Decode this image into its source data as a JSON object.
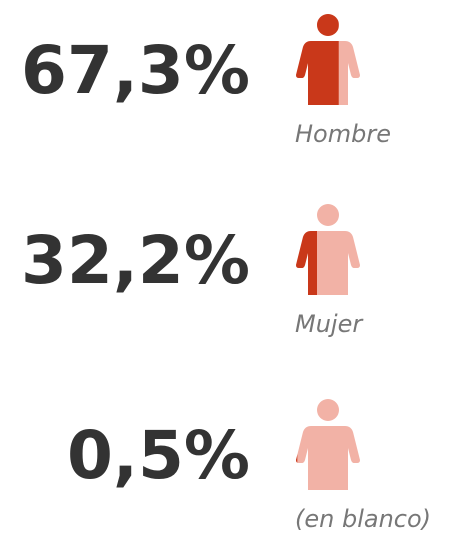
{
  "chart_data": {
    "type": "pictogram",
    "categories": [
      "Hombre",
      "Mujer",
      "(en blanco)"
    ],
    "values": [
      67.3,
      32.2,
      0.5
    ],
    "value_labels": [
      "67,3%",
      "32,2%",
      "0,5%"
    ],
    "xlim": [
      0,
      100
    ],
    "colors": [
      "#c9381a",
      "#f2b2a6"
    ]
  }
}
